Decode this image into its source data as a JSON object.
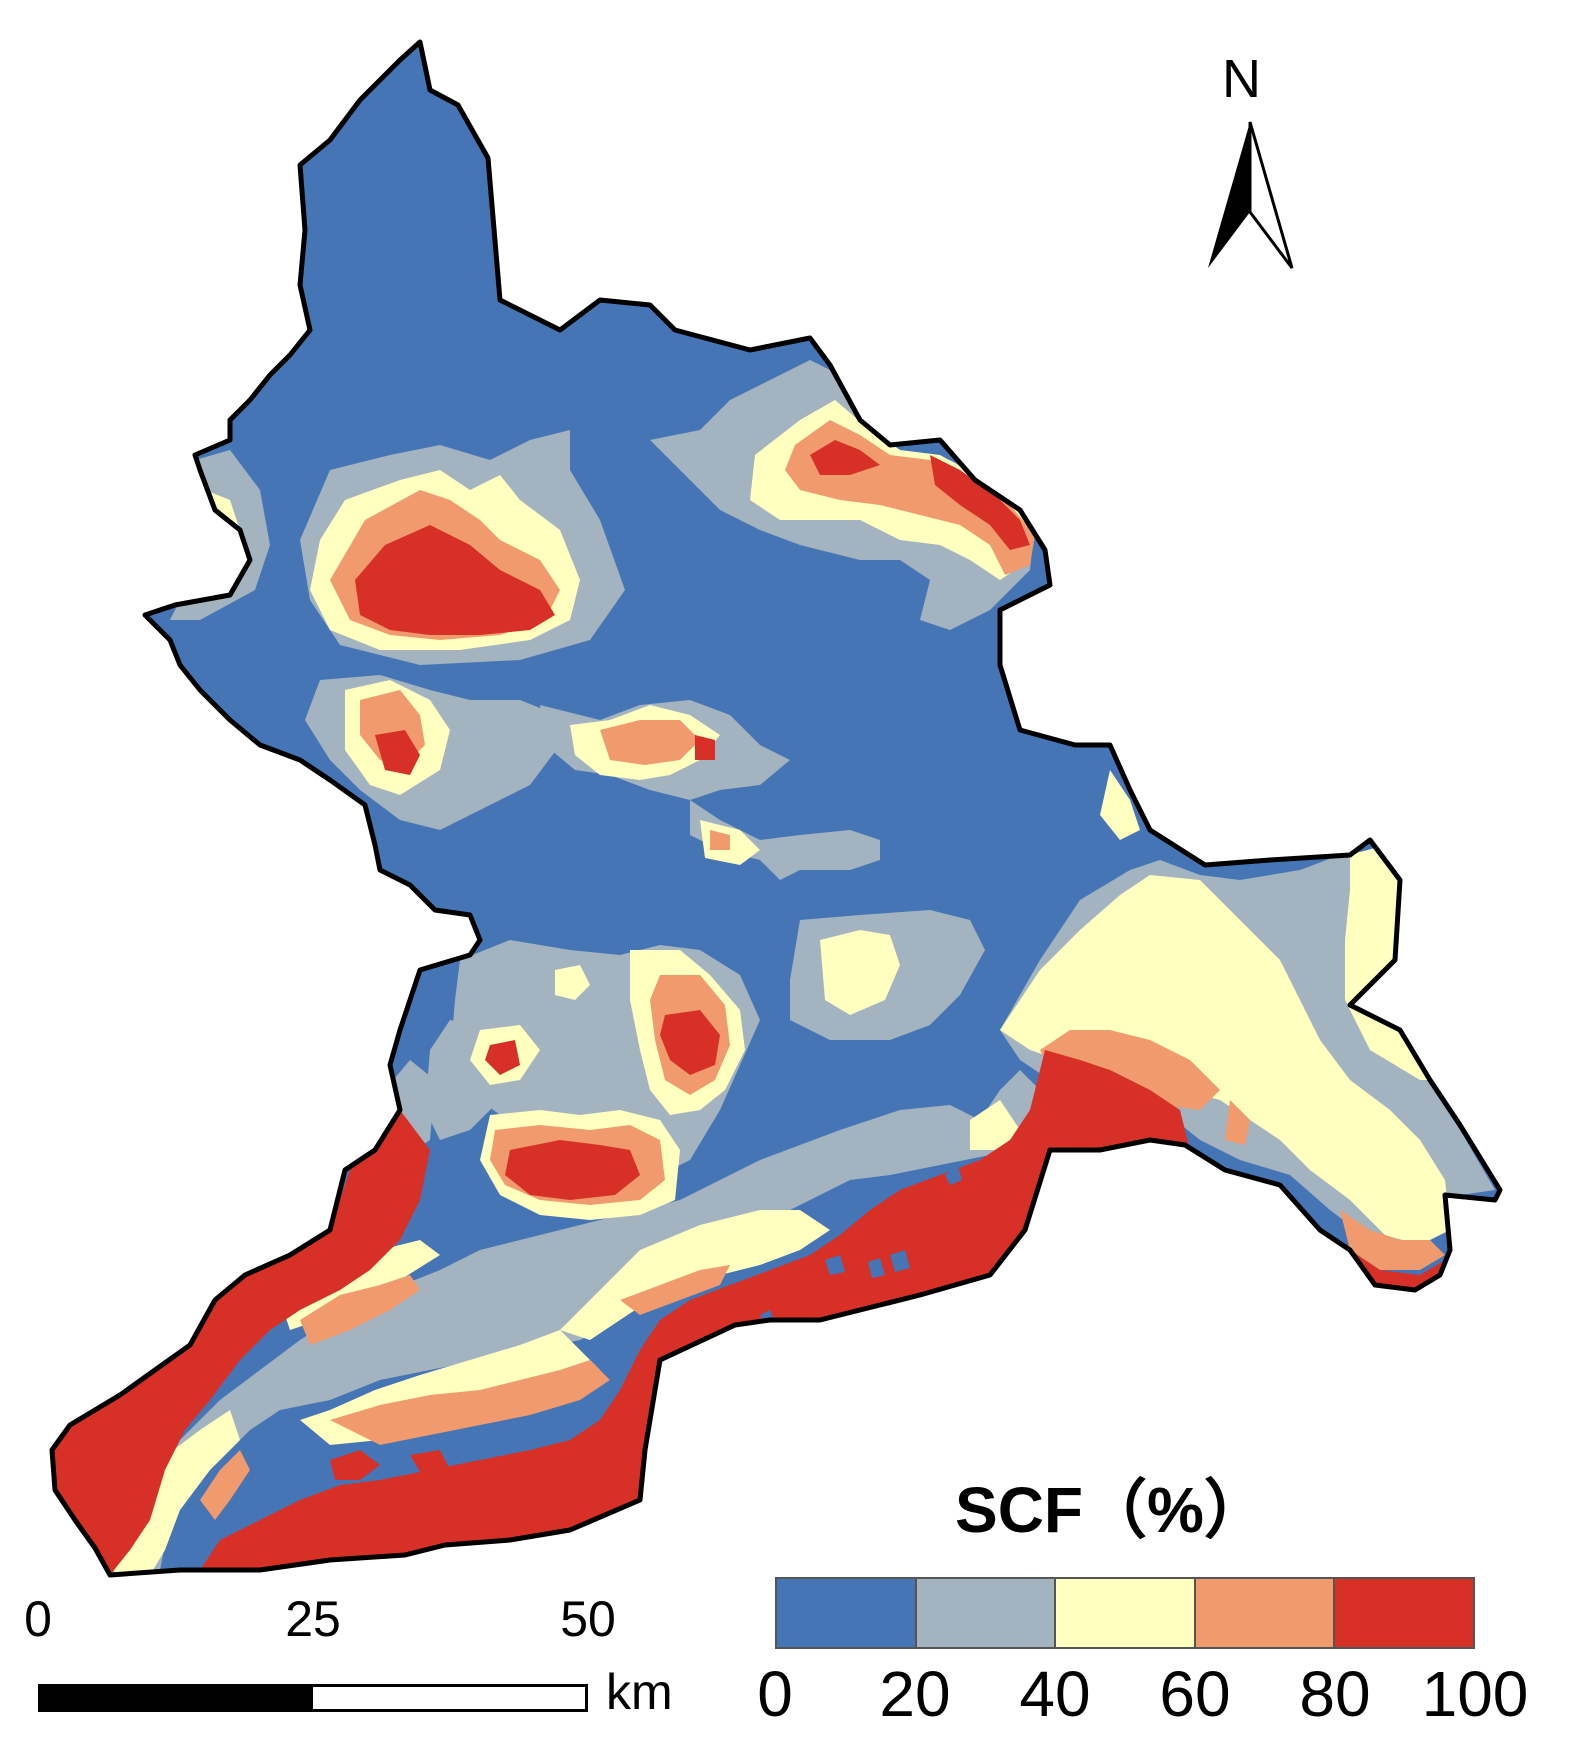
{
  "map": {
    "north_label": "N",
    "colors": {
      "blue": "#4575b4",
      "grey": "#a3b4c0",
      "yellow": "#ffffbf",
      "orange": "#f09a6e",
      "red": "#d73027",
      "border": "#000000"
    }
  },
  "legend": {
    "title": "SCF（%）",
    "classes": [
      {
        "color": "#4575b4"
      },
      {
        "color": "#a3b4c0"
      },
      {
        "color": "#ffffbf"
      },
      {
        "color": "#f09a6e"
      },
      {
        "color": "#d73027"
      }
    ],
    "ticks": [
      "0",
      "20",
      "40",
      "60",
      "80",
      "100"
    ]
  },
  "scale_bar": {
    "ticks": [
      "0",
      "25",
      "50"
    ],
    "unit": "km"
  }
}
